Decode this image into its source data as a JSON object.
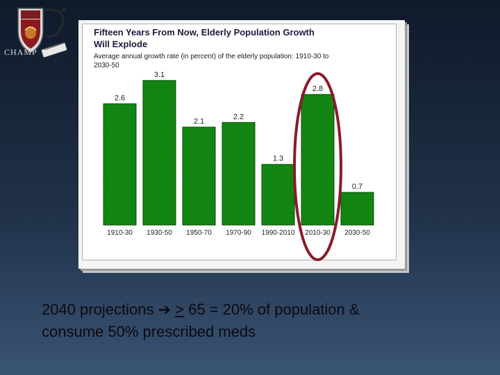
{
  "logo": {
    "badge_text": "CHAMP",
    "icon": "champ-crest-logo"
  },
  "chart_data": {
    "type": "bar",
    "title": "Fifteen Years From Now, Elderly Population Growth Will Explode",
    "subtitle": "Average annual growth rate (in percent) of the elderly population: 1910-30 to 2030-50",
    "categories": [
      "1910-30",
      "1930-50",
      "1950-70",
      "1970-90",
      "1990-2010",
      "2010-30",
      "2030-50"
    ],
    "values": [
      2.6,
      3.1,
      2.1,
      2.2,
      1.3,
      2.8,
      0.7
    ],
    "ylim": [
      0,
      3.5
    ],
    "xlabel": "",
    "ylabel": "",
    "grid": false,
    "legend": "none",
    "highlight_category": "2010-30",
    "colors": {
      "bar": "#138a13",
      "bar_edge": "#0a4d0a",
      "highlight_ring": "#8a1a2a"
    }
  },
  "caption": {
    "line1_prefix": "2040 projections ",
    "arrow": "➔",
    "ge_symbol": ">",
    "line1_suffix": " 65 = 20% of population &",
    "line2": "consume 50% prescribed meds"
  }
}
